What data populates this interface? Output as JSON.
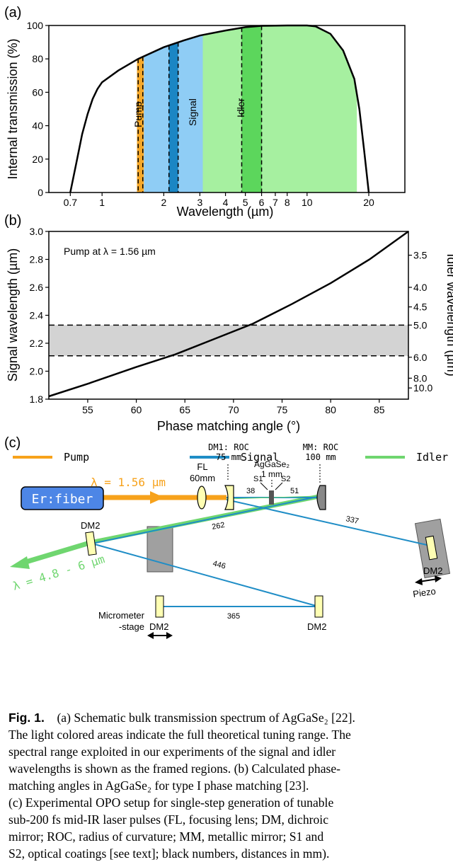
{
  "panel_a": {
    "letter": "(a)",
    "chart_data": {
      "type": "area",
      "xlabel": "Wavelength (µm)",
      "ylabel": "Internal transmission (%)",
      "xscale": "log",
      "xlim": [
        0.55,
        30
      ],
      "ylim": [
        0,
        100
      ],
      "xticks": [
        0.7,
        1,
        2,
        3,
        4,
        5,
        6,
        7,
        8,
        10,
        20
      ],
      "xtick_labels": [
        "0.7",
        "1",
        "2",
        "3",
        "4",
        "5",
        "6",
        "7",
        "8",
        "10",
        "20"
      ],
      "yticks": [
        0,
        20,
        40,
        60,
        80,
        100
      ],
      "curve": {
        "x": [
          0.7,
          0.75,
          0.8,
          0.85,
          0.9,
          0.95,
          1.0,
          1.2,
          1.5,
          2.0,
          2.5,
          3.0,
          4.0,
          5.0,
          6.0,
          8.0,
          10.0,
          11.0,
          13.0,
          15.0,
          17.0,
          18.0,
          19.0,
          20.0
        ],
        "y": [
          0,
          18,
          35,
          47,
          56,
          62,
          66,
          73,
          80,
          87,
          91,
          94,
          97,
          99,
          99.8,
          100,
          100,
          99.5,
          95,
          85,
          68,
          50,
          25,
          0
        ]
      },
      "shaded_regions": [
        {
          "name": "Pump",
          "x": [
            1.48,
            1.6
          ],
          "color": "#f7a929"
        },
        {
          "name": "Signal",
          "x": [
            1.6,
            3.1
          ],
          "color": "#8fcdf5"
        },
        {
          "name": "Signal",
          "x": [
            2.12,
            2.35
          ],
          "color": "#1b86c4"
        },
        {
          "name": "Idler",
          "x": [
            3.1,
            17.5
          ],
          "color": "#a6f0a0"
        },
        {
          "name": "Idler",
          "x": [
            4.8,
            6.0
          ],
          "color": "#5cd65c"
        }
      ],
      "framed_regions": [
        {
          "name": "Pump",
          "x": [
            1.5,
            1.58
          ]
        },
        {
          "name": "Signal",
          "x": [
            2.12,
            2.35
          ]
        },
        {
          "name": "Idler",
          "x": [
            4.8,
            6.0
          ]
        }
      ],
      "region_labels": [
        "Pump",
        "Signal",
        "Idler"
      ]
    }
  },
  "panel_b": {
    "letter": "(b)",
    "chart_data": {
      "type": "line",
      "xlabel": "Phase matching angle (°)",
      "ylabel": "Signal wavelength (µm)",
      "ylabel_right": "Idler wavelength (µm)",
      "annotation": "Pump at λ = 1.56 µm",
      "xlim": [
        51,
        88
      ],
      "ylim": [
        1.8,
        3.0
      ],
      "xticks": [
        55,
        60,
        65,
        70,
        75,
        80,
        85
      ],
      "yticks": [
        1.8,
        2.0,
        2.2,
        2.4,
        2.6,
        2.8,
        3.0
      ],
      "right_ticks": [
        {
          "label": "3.5",
          "signal": 2.83
        },
        {
          "label": "4.0",
          "signal": 2.6
        },
        {
          "label": "4.5",
          "signal": 2.46
        },
        {
          "label": "5.0",
          "signal": 2.33
        },
        {
          "label": "6.0",
          "signal": 2.1
        },
        {
          "label": "8.0",
          "signal": 1.95
        },
        {
          "label": "10.0",
          "signal": 1.88
        }
      ],
      "x": [
        51,
        55,
        60,
        64,
        68,
        72,
        76,
        80,
        84,
        88
      ],
      "y": [
        1.82,
        1.91,
        2.03,
        2.12,
        2.23,
        2.34,
        2.48,
        2.63,
        2.8,
        3.0
      ],
      "band": {
        "y": [
          2.11,
          2.33
        ],
        "color": "#d3d3d3"
      }
    }
  },
  "panel_c": {
    "letter": "(c)",
    "legend": [
      {
        "label": "Pump",
        "color": "#f7a21b"
      },
      {
        "label": "Signal",
        "color": "#1f8dc6"
      },
      {
        "label": "Idler",
        "color": "#6fd66f"
      }
    ],
    "laser_label": "Er:fiber",
    "pump_label": "λ = 1.56 µm",
    "idler_label": "λ = 4.8 - 6 µm",
    "fl_label": [
      "FL",
      "60mm"
    ],
    "dm1_label": [
      "DM1: ROC",
      "75 mm"
    ],
    "mm_label": [
      "MM: ROC",
      "100 mm"
    ],
    "crystal_label": [
      "AgGaSe₂",
      "1 mm"
    ],
    "s1": "S1",
    "s2": "S2",
    "dm2": "DM2",
    "piezo": "Piezo",
    "micrometer": [
      "Micrometer",
      "-stage"
    ],
    "distances": [
      "38",
      "51",
      "262",
      "337",
      "446",
      "365"
    ],
    "colors": {
      "laser_box": "#4d86e6",
      "mirror_fill": "#ffffb3",
      "mount": "#a0a0a0"
    }
  },
  "caption": {
    "fig": "Fig. 1.",
    "lines": [
      "(a) Schematic bulk transmission spectrum of AgGaSe₂ [22].",
      "The light colored areas indicate the full theoretical tuning range. The",
      "spectral range exploited in our experiments of the signal and idler",
      "wavelengths is shown as the framed regions. (b) Calculated phase-",
      "matching angles in AgGaSe₂ for type I phase matching [23].",
      "(c) Experimental OPO setup for single-step generation of tunable",
      "sub-200 fs mid-IR laser pulses (FL, focusing lens; DM, dichroic",
      "mirror; ROC, radius of curvature; MM, metallic mirror; S1 and",
      "S2, optical coatings [see text]; black numbers, distances in mm)."
    ]
  }
}
